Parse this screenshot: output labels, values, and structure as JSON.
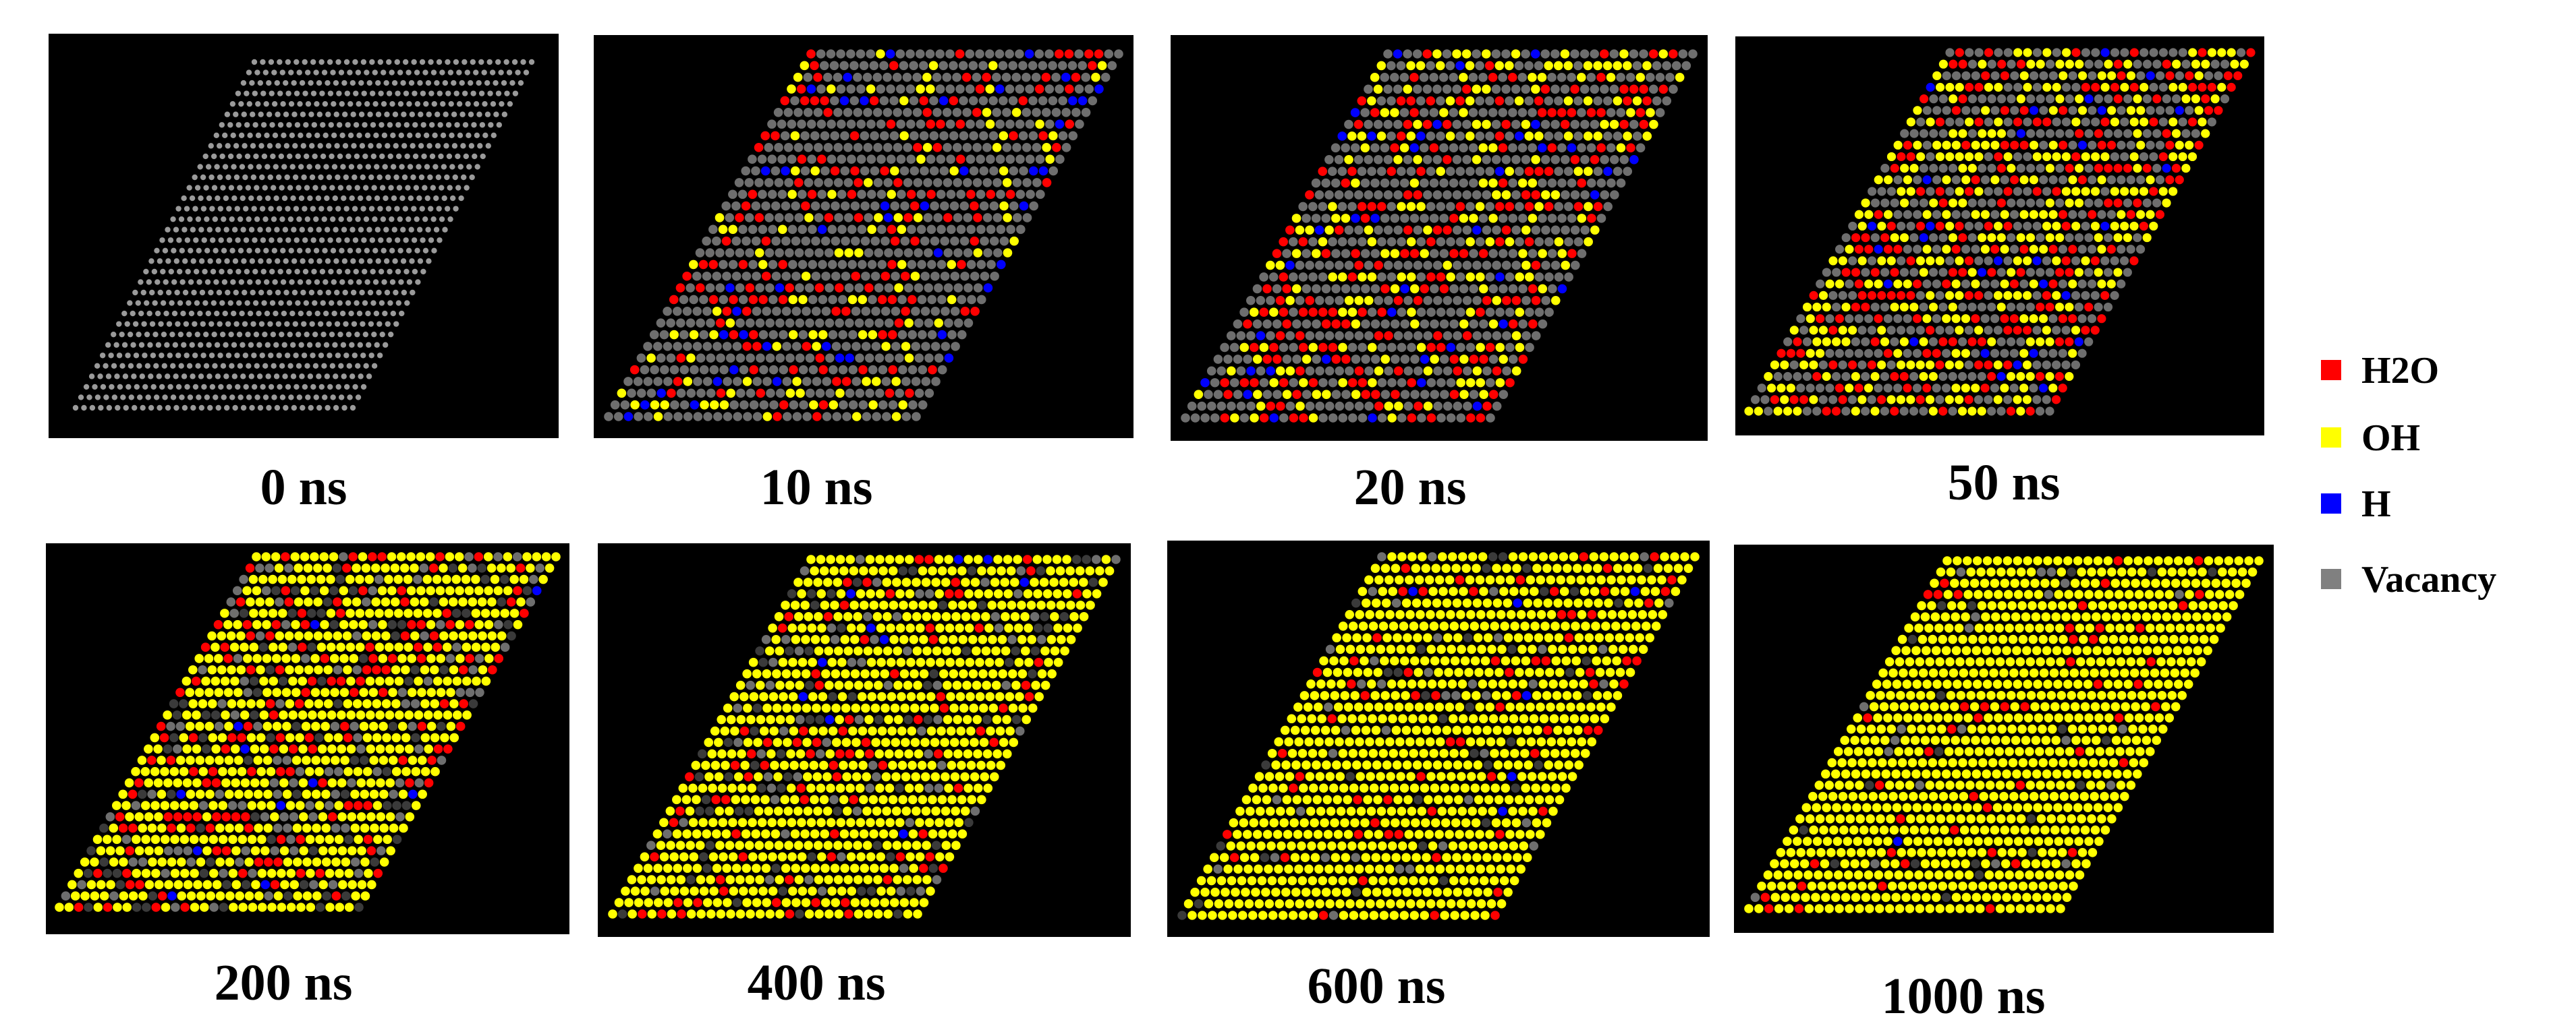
{
  "legend": {
    "items": [
      {
        "label": "H2O",
        "color": "#ff0000"
      },
      {
        "label": "OH",
        "color": "#ffff00"
      },
      {
        "label": "H",
        "color": "#0000ff"
      },
      {
        "label": "Vacancy",
        "color": "#808080"
      }
    ]
  },
  "panels": [
    {
      "label": "0 ns",
      "fraction_h2o": 0.0,
      "fraction_oh": 0.0,
      "fraction_h": 0.0
    },
    {
      "label": "10 ns",
      "fraction_h2o": 0.16,
      "fraction_oh": 0.1,
      "fraction_h": 0.04
    },
    {
      "label": "20 ns",
      "fraction_h2o": 0.2,
      "fraction_oh": 0.22,
      "fraction_h": 0.03
    },
    {
      "label": "50 ns",
      "fraction_h2o": 0.22,
      "fraction_oh": 0.36,
      "fraction_h": 0.03
    },
    {
      "label": "200 ns",
      "fraction_h2o": 0.15,
      "fraction_oh": 0.62,
      "fraction_h": 0.01
    },
    {
      "label": "400 ns",
      "fraction_h2o": 0.1,
      "fraction_oh": 0.75,
      "fraction_h": 0.01
    },
    {
      "label": "600 ns",
      "fraction_h2o": 0.07,
      "fraction_oh": 0.85,
      "fraction_h": 0.005
    },
    {
      "label": "1000 ns",
      "fraction_h2o": 0.04,
      "fraction_oh": 0.92,
      "fraction_h": 0.002
    }
  ]
}
